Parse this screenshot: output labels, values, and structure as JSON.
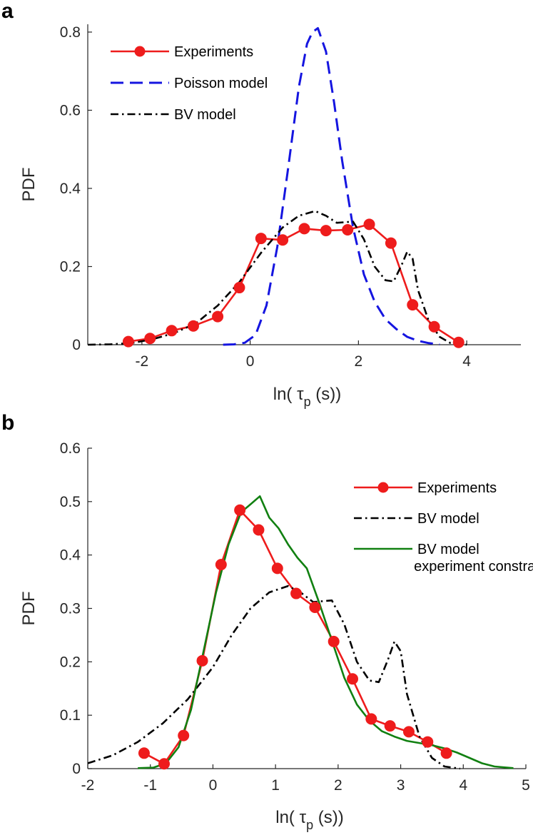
{
  "figure": {
    "panels": [
      "a",
      "b"
    ]
  },
  "colors": {
    "experiments": "#ee1c1c",
    "poisson": "#1515e0",
    "bv": "#000000",
    "bv_constrained": "#118011",
    "axis": "#262626"
  },
  "chart_data": [
    {
      "panel_label": "a",
      "type": "line",
      "title": "",
      "xlabel": "ln( τ",
      "xlabel_sub": "p",
      "xlabel_suffix": " (s))",
      "ylabel": "PDF",
      "xlim": [
        -3,
        5
      ],
      "ylim": [
        0,
        0.82
      ],
      "xticks": [
        -2,
        0,
        2,
        4
      ],
      "yticks": [
        0,
        0.2,
        0.4,
        0.6,
        0.8
      ],
      "xtick_labels": [
        "-2",
        "0",
        "2",
        "4"
      ],
      "ytick_labels": [
        "0",
        "0.2",
        "0.4",
        "0.6",
        "0.8"
      ],
      "legend_position": "top-left",
      "series": [
        {
          "name": "Experiments",
          "style": "solid-markers",
          "color": "#ee1c1c",
          "x": [
            -2.25,
            -1.85,
            -1.45,
            -1.05,
            -0.6,
            -0.2,
            0.2,
            0.6,
            1.0,
            1.4,
            1.8,
            2.2,
            2.6,
            3.0,
            3.4,
            3.85
          ],
          "y": [
            0.008,
            0.016,
            0.036,
            0.048,
            0.072,
            0.146,
            0.272,
            0.268,
            0.297,
            0.292,
            0.294,
            0.308,
            0.26,
            0.102,
            0.046,
            0.006
          ]
        },
        {
          "name": "Poisson model",
          "style": "dashed",
          "color": "#1515e0",
          "x": [
            -0.5,
            -0.3,
            -0.1,
            0.1,
            0.3,
            0.5,
            0.7,
            0.9,
            1.05,
            1.15,
            1.25,
            1.4,
            1.55,
            1.7,
            1.9,
            2.1,
            2.3,
            2.5,
            2.7,
            2.9,
            3.1,
            3.3,
            3.5
          ],
          "y": [
            0.0,
            0.001,
            0.005,
            0.025,
            0.1,
            0.25,
            0.45,
            0.66,
            0.77,
            0.8,
            0.81,
            0.75,
            0.62,
            0.47,
            0.3,
            0.18,
            0.11,
            0.065,
            0.04,
            0.02,
            0.01,
            0.004,
            0.001
          ]
        },
        {
          "name": "BV model",
          "style": "dashdot",
          "color": "#000000",
          "x": [
            -3.0,
            -2.6,
            -2.2,
            -1.8,
            -1.4,
            -1.0,
            -0.6,
            -0.2,
            0.2,
            0.6,
            0.9,
            1.2,
            1.4,
            1.6,
            1.9,
            2.1,
            2.3,
            2.5,
            2.65,
            2.8,
            2.9,
            3.0,
            3.1,
            3.3,
            3.5,
            3.7,
            4.0
          ],
          "y": [
            0.0,
            0.001,
            0.004,
            0.014,
            0.03,
            0.055,
            0.1,
            0.16,
            0.235,
            0.3,
            0.33,
            0.342,
            0.33,
            0.312,
            0.315,
            0.27,
            0.2,
            0.165,
            0.162,
            0.205,
            0.238,
            0.22,
            0.14,
            0.06,
            0.02,
            0.004,
            0.0
          ]
        }
      ]
    },
    {
      "panel_label": "b",
      "type": "line",
      "title": "",
      "xlabel": "ln( τ",
      "xlabel_sub": "p",
      "xlabel_suffix": " (s))",
      "ylabel": "PDF",
      "xlim": [
        -2,
        5
      ],
      "ylim": [
        0,
        0.6
      ],
      "xticks": [
        -2,
        -1,
        0,
        1,
        2,
        3,
        4,
        5
      ],
      "yticks": [
        0,
        0.1,
        0.2,
        0.3,
        0.4,
        0.5,
        0.6
      ],
      "xtick_labels": [
        "-2",
        "-1",
        "0",
        "1",
        "2",
        "3",
        "4",
        "5"
      ],
      "ytick_labels": [
        "0",
        "0.1",
        "0.2",
        "0.3",
        "0.4",
        "0.5",
        "0.6"
      ],
      "legend_position": "top-right",
      "series": [
        {
          "name": "Experiments",
          "style": "solid-markers",
          "color": "#ee1c1c",
          "x": [
            -1.1,
            -0.78,
            -0.47,
            -0.17,
            0.13,
            0.43,
            0.73,
            1.03,
            1.33,
            1.63,
            1.93,
            2.23,
            2.53,
            2.83,
            3.13,
            3.43,
            3.73
          ],
          "y": [
            0.029,
            0.009,
            0.062,
            0.202,
            0.382,
            0.484,
            0.447,
            0.375,
            0.328,
            0.302,
            0.238,
            0.168,
            0.093,
            0.08,
            0.069,
            0.05,
            0.029
          ]
        },
        {
          "name": "BV model",
          "style": "dashdot",
          "color": "#000000",
          "x": [
            -2.0,
            -1.6,
            -1.2,
            -0.8,
            -0.4,
            0.0,
            0.3,
            0.6,
            0.9,
            1.2,
            1.4,
            1.6,
            1.9,
            2.1,
            2.3,
            2.5,
            2.65,
            2.8,
            2.9,
            3.0,
            3.1,
            3.3,
            3.5,
            3.7,
            3.95
          ],
          "y": [
            0.01,
            0.025,
            0.05,
            0.085,
            0.13,
            0.19,
            0.25,
            0.3,
            0.33,
            0.342,
            0.33,
            0.312,
            0.315,
            0.27,
            0.2,
            0.165,
            0.162,
            0.205,
            0.238,
            0.22,
            0.14,
            0.06,
            0.02,
            0.004,
            0.0
          ]
        },
        {
          "name": "BV model\nexperiment constrains",
          "style": "solid",
          "color": "#118011",
          "x": [
            -1.2,
            -0.95,
            -0.75,
            -0.55,
            -0.35,
            -0.15,
            0.05,
            0.25,
            0.45,
            0.6,
            0.75,
            0.9,
            1.05,
            1.2,
            1.35,
            1.5,
            1.7,
            1.9,
            2.1,
            2.3,
            2.5,
            2.7,
            2.9,
            3.1,
            3.3,
            3.5,
            3.7,
            3.9,
            4.1,
            4.3,
            4.5,
            4.8
          ],
          "y": [
            0.001,
            0.002,
            0.01,
            0.04,
            0.11,
            0.22,
            0.33,
            0.42,
            0.48,
            0.495,
            0.51,
            0.47,
            0.45,
            0.42,
            0.395,
            0.375,
            0.31,
            0.24,
            0.17,
            0.12,
            0.09,
            0.07,
            0.06,
            0.052,
            0.048,
            0.044,
            0.038,
            0.03,
            0.02,
            0.01,
            0.004,
            0.001
          ]
        }
      ]
    }
  ]
}
